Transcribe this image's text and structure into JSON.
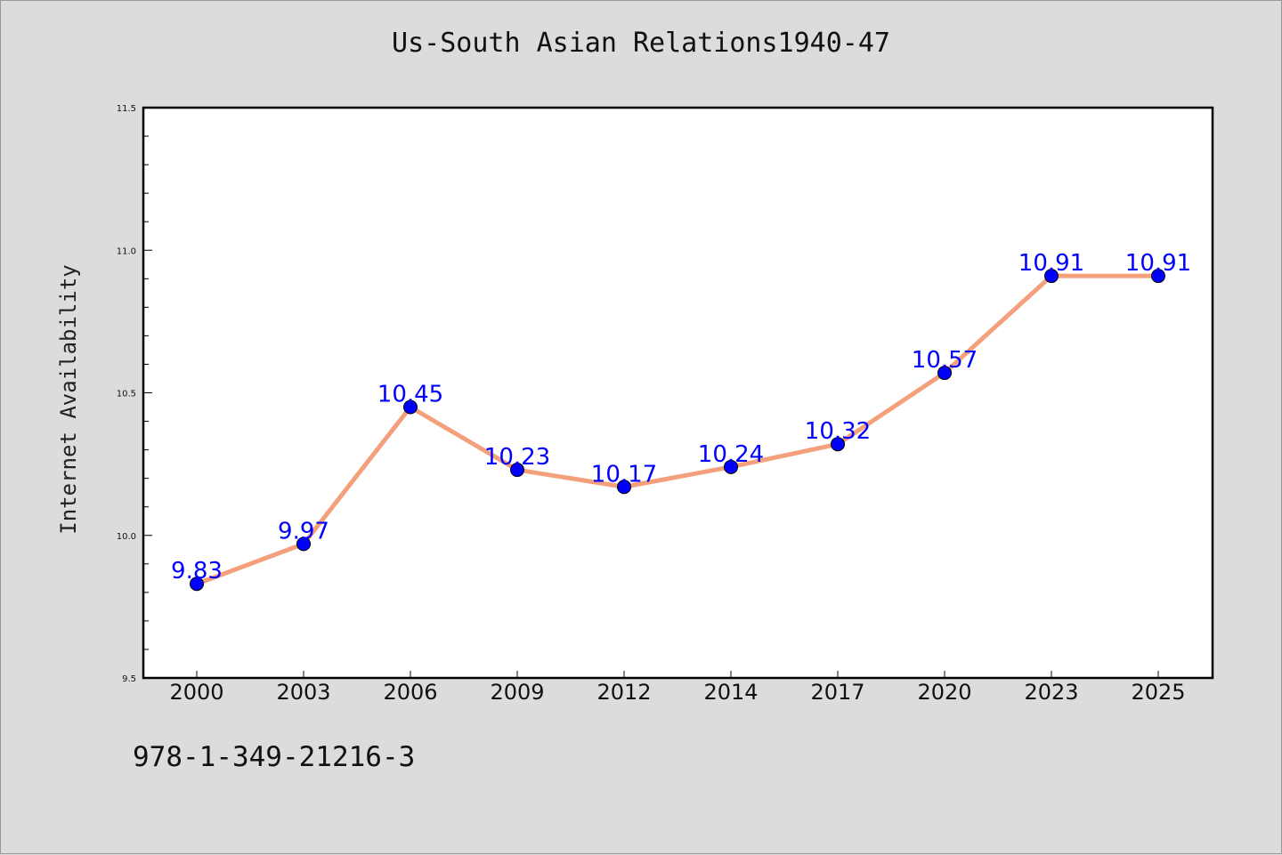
{
  "chart_data": {
    "type": "line",
    "title": "Us-South Asian Relations1940-47",
    "xlabel": "",
    "ylabel": "Internet Availability",
    "categories": [
      "2000",
      "2003",
      "2006",
      "2009",
      "2012",
      "2014",
      "2017",
      "2020",
      "2023",
      "2025"
    ],
    "values": [
      9.83,
      9.97,
      10.45,
      10.23,
      10.17,
      10.24,
      10.32,
      10.57,
      10.91,
      10.91
    ],
    "data_labels": [
      "9.83",
      "9.97",
      "10.45",
      "10.23",
      "10.17",
      "10.24",
      "10.32",
      "10.57",
      "10.91",
      "10.91"
    ],
    "ylim": [
      9.5,
      11.5
    ],
    "yticks": [
      9.5,
      10.0,
      10.5,
      11.0,
      11.5
    ],
    "ytick_labels": [
      "9.5",
      "10.0",
      "10.5",
      "11.0",
      "11.5"
    ],
    "grid": false,
    "colors": {
      "line": "#f4a07c",
      "marker": "#0000ff",
      "label": "#0000ff",
      "background": "#dcdcdc",
      "plot_bg": "#ffffff"
    }
  },
  "footer": {
    "isbn": "978-1-349-21216-3"
  }
}
